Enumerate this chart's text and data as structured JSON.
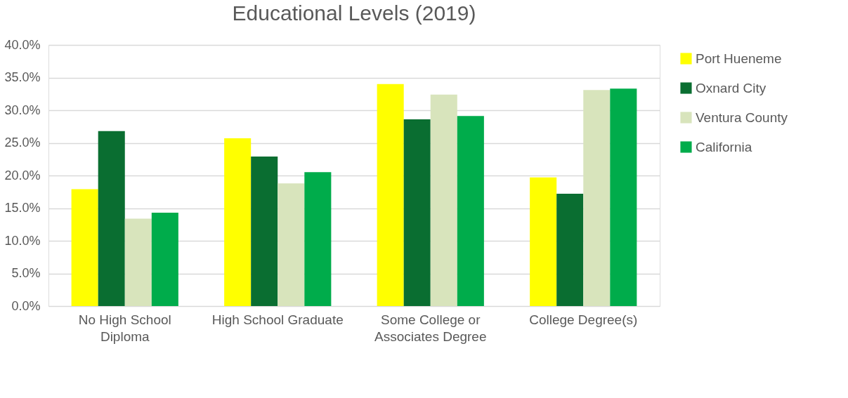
{
  "chart_data": {
    "type": "bar",
    "title": "Educational Levels (2019)",
    "categories": [
      "No High School\nDiploma",
      "High School Graduate",
      "Some College or\nAssociates Degree",
      "College Degree(s)"
    ],
    "series": [
      {
        "name": "Port Hueneme",
        "color": "#ffff00",
        "values": [
          17.9,
          25.7,
          34.0,
          19.7
        ]
      },
      {
        "name": "Oxnard City",
        "color": "#0a6e31",
        "values": [
          26.8,
          22.9,
          28.6,
          17.2
        ]
      },
      {
        "name": "Ventura County",
        "color": "#d8e4bc",
        "values": [
          13.4,
          18.8,
          32.4,
          33.1
        ]
      },
      {
        "name": "California",
        "color": "#00ac4b",
        "values": [
          14.3,
          20.5,
          29.1,
          33.3
        ]
      }
    ],
    "ylim": [
      0,
      40
    ],
    "yticks": [
      {
        "value": 0,
        "label": "0.0%"
      },
      {
        "value": 5,
        "label": "5.0%"
      },
      {
        "value": 10,
        "label": "10.0%"
      },
      {
        "value": 15,
        "label": "15.0%"
      },
      {
        "value": 20,
        "label": "20.0%"
      },
      {
        "value": 25,
        "label": "25.0%"
      },
      {
        "value": 30,
        "label": "30.0%"
      },
      {
        "value": 35,
        "label": "35.0%"
      },
      {
        "value": 40,
        "label": "40.0%"
      }
    ],
    "grid": "y",
    "legend": "right"
  }
}
